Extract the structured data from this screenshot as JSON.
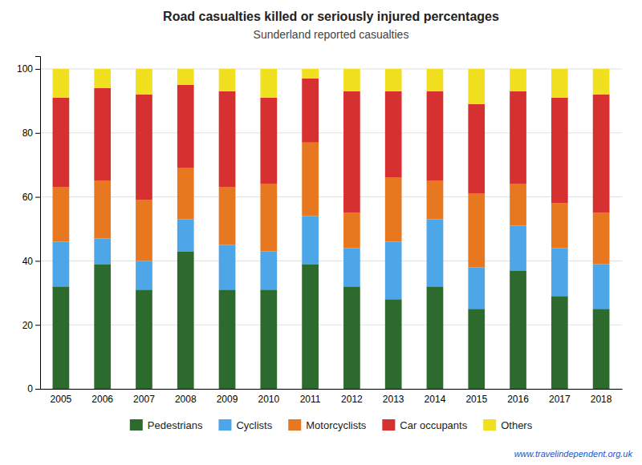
{
  "chart_data": {
    "type": "bar",
    "stacked": true,
    "title": "Road casualties killed or seriously injured percentages",
    "subtitle": "Sunderland reported casualties",
    "annotations": [
      "www.travelindependent.org.uk"
    ],
    "categories": [
      "2005",
      "2006",
      "2007",
      "2008",
      "2009",
      "2010",
      "2011",
      "2012",
      "2013",
      "2014",
      "2015",
      "2016",
      "2017",
      "2018"
    ],
    "series": [
      {
        "name": "Pedestrians",
        "color": "#2d6a2d",
        "values": [
          32,
          39,
          31,
          43,
          31,
          31,
          39,
          32,
          28,
          32,
          25,
          37,
          29,
          25
        ]
      },
      {
        "name": "Cyclists",
        "color": "#4da6e8",
        "values": [
          14,
          8,
          9,
          10,
          14,
          12,
          15,
          12,
          18,
          21,
          13,
          14,
          15,
          14
        ]
      },
      {
        "name": "Motorcyclists",
        "color": "#e87820",
        "values": [
          17,
          18,
          19,
          16,
          18,
          21,
          23,
          11,
          20,
          12,
          23,
          13,
          14,
          16
        ]
      },
      {
        "name": "Car occupants",
        "color": "#d63030",
        "values": [
          28,
          29,
          33,
          26,
          30,
          27,
          20,
          38,
          27,
          28,
          28,
          29,
          33,
          37
        ]
      },
      {
        "name": "Others",
        "color": "#f0e020",
        "values": [
          9,
          6,
          8,
          5,
          7,
          9,
          3,
          7,
          7,
          7,
          11,
          7,
          9,
          8
        ]
      }
    ],
    "ylim": [
      0,
      104
    ],
    "yticks": [
      0,
      20,
      40,
      60,
      80,
      100
    ],
    "grid": true,
    "legend": "bottom"
  }
}
